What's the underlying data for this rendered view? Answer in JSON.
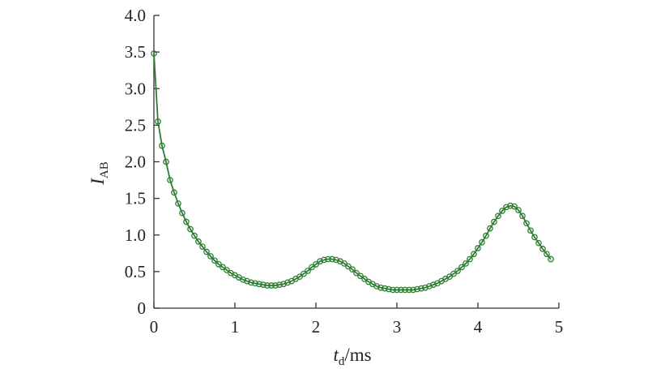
{
  "chart_data": {
    "type": "line",
    "xlabel": {
      "main": "t",
      "sub": "d",
      "rest": "/ms"
    },
    "ylabel": {
      "main": "I",
      "sub": "AB"
    },
    "xlim": [
      0,
      5
    ],
    "ylim": [
      0,
      4
    ],
    "xticks": [
      0,
      1,
      2,
      3,
      4,
      5
    ],
    "yticks": [
      0,
      0.5,
      1.0,
      1.5,
      2.0,
      2.5,
      3.0,
      3.5,
      4.0
    ],
    "xtick_labels": [
      "0",
      "1",
      "2",
      "3",
      "4",
      "5"
    ],
    "ytick_labels": [
      "0",
      "0.5",
      "1.0",
      "1.5",
      "2.0",
      "2.5",
      "3.0",
      "3.5",
      "4.0"
    ],
    "grid": false,
    "series": [
      {
        "color": "#2e7d32",
        "marker": "circle-open",
        "x": [
          0,
          0.05,
          0.1,
          0.15,
          0.2,
          0.25,
          0.3,
          0.35,
          0.4,
          0.45,
          0.5,
          0.55,
          0.6,
          0.65,
          0.7,
          0.75,
          0.8,
          0.85,
          0.9,
          0.95,
          1.0,
          1.05,
          1.1,
          1.15,
          1.2,
          1.25,
          1.3,
          1.35,
          1.4,
          1.45,
          1.5,
          1.55,
          1.6,
          1.65,
          1.7,
          1.75,
          1.8,
          1.85,
          1.9,
          1.95,
          2.0,
          2.05,
          2.1,
          2.15,
          2.2,
          2.25,
          2.3,
          2.35,
          2.4,
          2.45,
          2.5,
          2.55,
          2.6,
          2.65,
          2.7,
          2.75,
          2.8,
          2.85,
          2.9,
          2.95,
          3.0,
          3.05,
          3.1,
          3.15,
          3.2,
          3.25,
          3.3,
          3.35,
          3.4,
          3.45,
          3.5,
          3.55,
          3.6,
          3.65,
          3.7,
          3.75,
          3.8,
          3.85,
          3.9,
          3.95,
          4.0,
          4.05,
          4.1,
          4.15,
          4.2,
          4.25,
          4.3,
          4.35,
          4.4,
          4.45,
          4.5,
          4.55,
          4.6,
          4.65,
          4.7,
          4.75,
          4.8,
          4.85,
          4.9
        ],
        "y": [
          3.48,
          2.55,
          2.22,
          2.0,
          1.75,
          1.58,
          1.43,
          1.3,
          1.18,
          1.08,
          0.99,
          0.91,
          0.84,
          0.77,
          0.71,
          0.65,
          0.6,
          0.56,
          0.52,
          0.48,
          0.45,
          0.42,
          0.39,
          0.37,
          0.35,
          0.34,
          0.33,
          0.32,
          0.31,
          0.31,
          0.31,
          0.32,
          0.33,
          0.35,
          0.37,
          0.4,
          0.43,
          0.47,
          0.51,
          0.56,
          0.6,
          0.64,
          0.66,
          0.67,
          0.67,
          0.66,
          0.64,
          0.61,
          0.57,
          0.53,
          0.48,
          0.44,
          0.4,
          0.36,
          0.33,
          0.3,
          0.28,
          0.27,
          0.26,
          0.25,
          0.25,
          0.25,
          0.25,
          0.25,
          0.25,
          0.26,
          0.27,
          0.28,
          0.3,
          0.32,
          0.34,
          0.37,
          0.4,
          0.43,
          0.47,
          0.51,
          0.56,
          0.61,
          0.67,
          0.74,
          0.82,
          0.9,
          0.99,
          1.09,
          1.18,
          1.26,
          1.33,
          1.38,
          1.4,
          1.39,
          1.34,
          1.26,
          1.16,
          1.06,
          0.97,
          0.89,
          0.81,
          0.74,
          0.67
        ]
      }
    ]
  }
}
